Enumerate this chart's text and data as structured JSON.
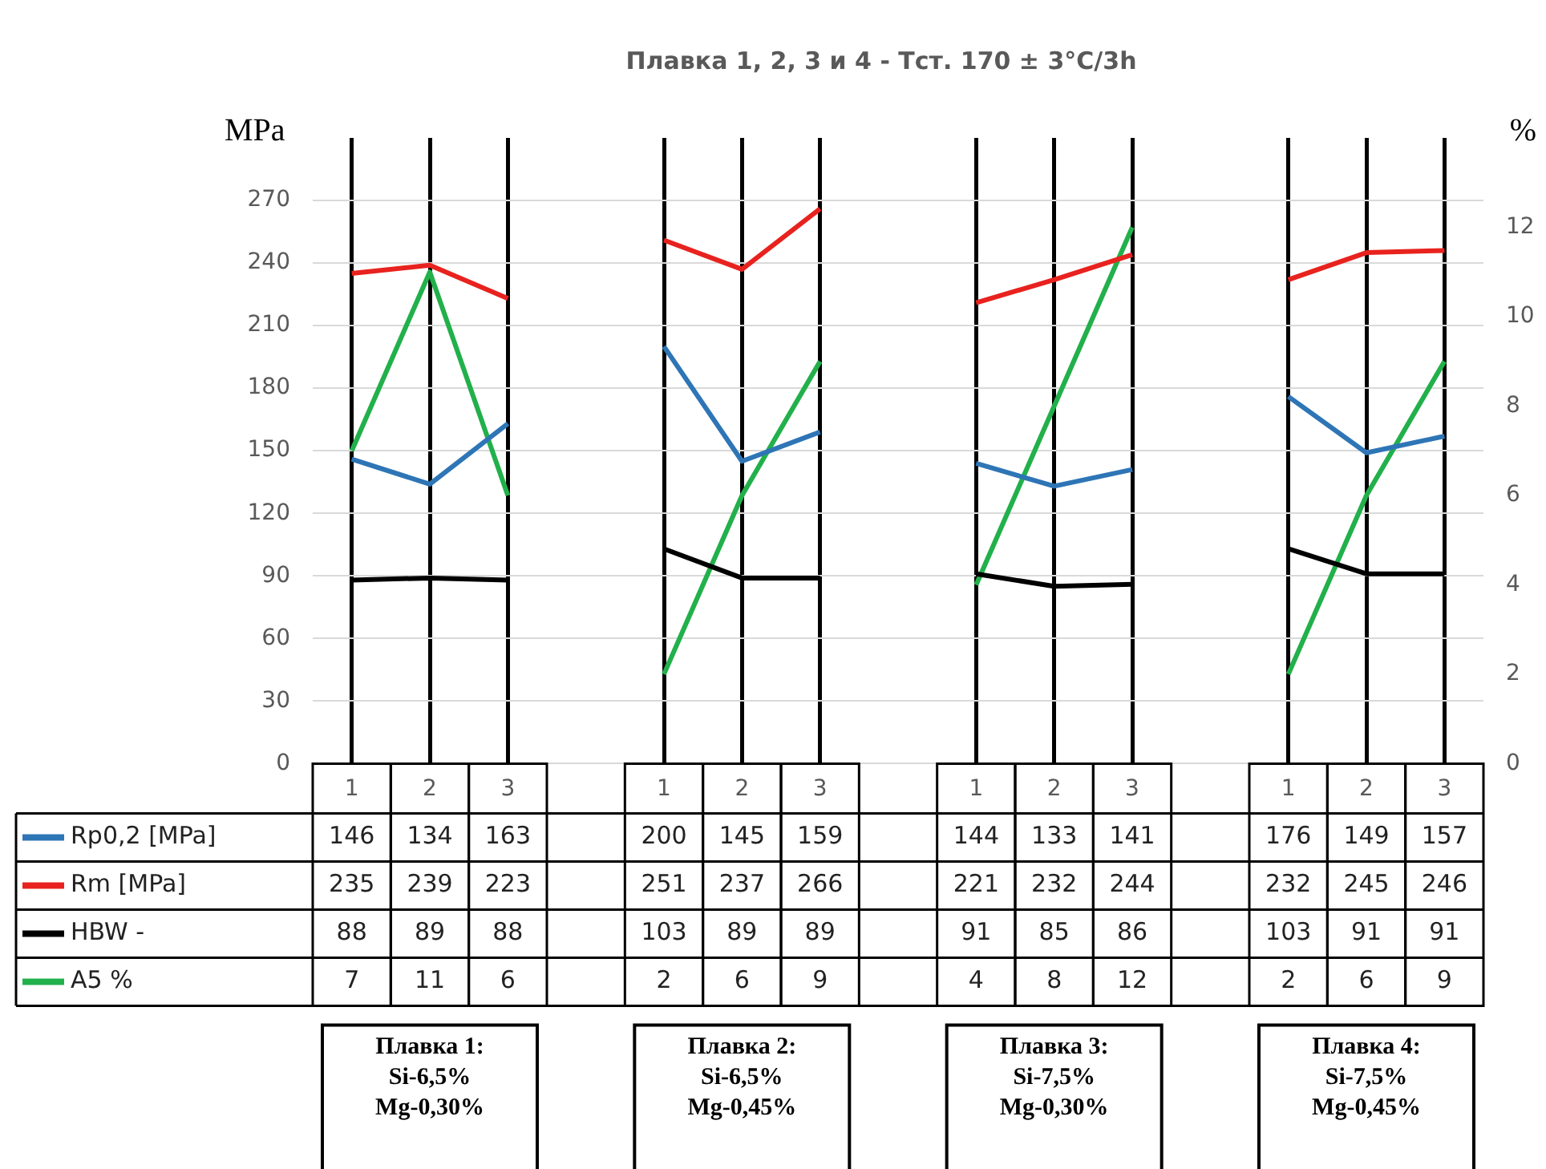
{
  "chart_data": {
    "type": "line",
    "title": "Плавка 1, 2, 3 и 4 - Тст. 170 ± 3°C/3h",
    "ylabel": "MPa",
    "y2label": "%",
    "categories": [
      "1",
      "2",
      "3",
      null,
      "1",
      "2",
      "3",
      null,
      "1",
      "2",
      "3",
      null,
      "1",
      "2",
      "3"
    ],
    "series": [
      {
        "name": "Rp0,2 [MPa]",
        "color": "#2e75b6",
        "values": [
          146,
          134,
          163,
          null,
          200,
          145,
          159,
          null,
          144,
          133,
          141,
          null,
          176,
          149,
          157
        ]
      },
      {
        "name": "Rm [MPa]",
        "color": "#e8221e",
        "values": [
          235,
          239,
          223,
          null,
          251,
          237,
          266,
          null,
          221,
          232,
          244,
          null,
          232,
          245,
          246
        ]
      },
      {
        "name": "HBW -",
        "color": "#000000",
        "values": [
          88,
          89,
          88,
          null,
          103,
          89,
          89,
          null,
          91,
          85,
          86,
          null,
          103,
          91,
          91
        ]
      },
      {
        "name": "A5 %",
        "color": "#22b04b",
        "axis": "y2",
        "values": [
          7,
          11,
          6,
          null,
          2,
          6,
          9,
          null,
          4,
          8,
          12,
          null,
          2,
          6,
          9
        ]
      }
    ],
    "ylim": [
      0,
      300
    ],
    "yticks": [
      0,
      30,
      60,
      90,
      120,
      150,
      180,
      210,
      240,
      270
    ],
    "y2lim": [
      0,
      14
    ],
    "y2ticks": [
      0,
      2,
      4,
      6,
      8,
      10,
      12
    ],
    "grid": true,
    "legend": "bottom",
    "marker": "none",
    "line_style": "solid",
    "data_labels": true,
    "annotations": [
      "Плавка 1:\nSi-6,5%\nMg-0,30%",
      "Плавка 2:\nSi-6,5%\nMg-0,45%",
      "Плавка 3:\nSi-7,5%\nMg-0,30%",
      "Плавка 4:\nSi-7,5%\nMg-0,45%"
    ]
  }
}
